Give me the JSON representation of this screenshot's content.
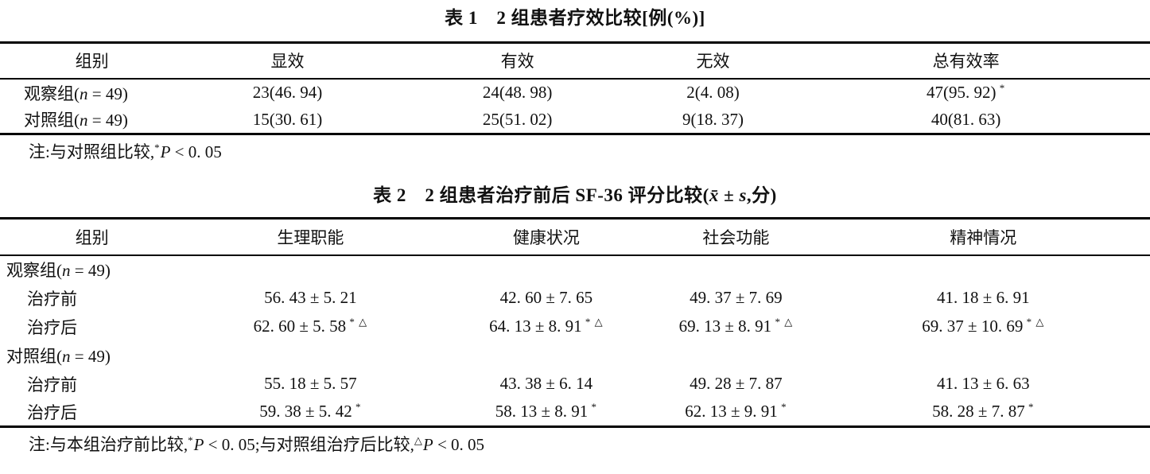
{
  "page": {
    "background": "#ffffff",
    "ink": "#111111",
    "rule_color": "#000000"
  },
  "table1": {
    "title": [
      {
        "t": "表 1　2 组患者疗效比较[例(%)]"
      }
    ],
    "headers": [
      "组别",
      "显效",
      "有效",
      "无效",
      "总有效率"
    ],
    "rows": [
      {
        "cells": [
          [
            {
              "t": "观察组("
            },
            {
              "t": "n",
              "i": true
            },
            {
              "t": " = 49)"
            }
          ],
          [
            {
              "t": "23(46. 94)"
            }
          ],
          [
            {
              "t": "24(48. 98)"
            }
          ],
          [
            {
              "t": "2(4. 08)"
            }
          ],
          [
            {
              "t": "47(95. 92)"
            },
            {
              "t": " *",
              "s": true
            }
          ]
        ]
      },
      {
        "cells": [
          [
            {
              "t": "对照组("
            },
            {
              "t": "n",
              "i": true
            },
            {
              "t": " = 49)"
            }
          ],
          [
            {
              "t": "15(30. 61)"
            }
          ],
          [
            {
              "t": "25(51. 02)"
            }
          ],
          [
            {
              "t": "9(18. 37)"
            }
          ],
          [
            {
              "t": "40(81. 63)"
            }
          ]
        ]
      }
    ],
    "note": [
      {
        "t": "注:与对照组比较,"
      },
      {
        "t": "*",
        "s": true
      },
      {
        "t": "P",
        "i": true
      },
      {
        "t": " < 0. 05"
      }
    ]
  },
  "table2": {
    "title": [
      {
        "t": "表 2　2 组患者治疗前后 SF-36 评分比较("
      },
      {
        "t": "x̄ ± s",
        "i": true
      },
      {
        "t": ",分)"
      }
    ],
    "headers": [
      "组别",
      "生理职能",
      "健康状况",
      "社会功能",
      "精神情况"
    ],
    "rows": [
      {
        "group": true,
        "cells": [
          [
            {
              "t": "观察组("
            },
            {
              "t": "n",
              "i": true
            },
            {
              "t": " = 49)"
            }
          ]
        ]
      },
      {
        "cells": [
          [
            {
              "t": "治疗前"
            }
          ],
          [
            {
              "t": "56. 43 ± 5. 21"
            }
          ],
          [
            {
              "t": "42. 60 ± 7. 65"
            }
          ],
          [
            {
              "t": "49. 37 ± 7. 69"
            }
          ],
          [
            {
              "t": "41. 18 ± 6. 91"
            }
          ]
        ]
      },
      {
        "cells": [
          [
            {
              "t": "治疗后"
            }
          ],
          [
            {
              "t": "62. 60 ± 5. 58"
            },
            {
              "t": " * △",
              "s": true
            }
          ],
          [
            {
              "t": "64. 13 ± 8. 91"
            },
            {
              "t": " * △",
              "s": true
            }
          ],
          [
            {
              "t": "69. 13 ± 8. 91"
            },
            {
              "t": " * △",
              "s": true
            }
          ],
          [
            {
              "t": "69. 37 ± 10. 69"
            },
            {
              "t": " * △",
              "s": true
            }
          ]
        ]
      },
      {
        "group": true,
        "cells": [
          [
            {
              "t": "对照组("
            },
            {
              "t": "n",
              "i": true
            },
            {
              "t": " = 49)"
            }
          ]
        ]
      },
      {
        "cells": [
          [
            {
              "t": "治疗前"
            }
          ],
          [
            {
              "t": "55. 18 ± 5. 57"
            }
          ],
          [
            {
              "t": "43. 38 ± 6. 14"
            }
          ],
          [
            {
              "t": "49. 28 ± 7. 87"
            }
          ],
          [
            {
              "t": "41. 13 ± 6. 63"
            }
          ]
        ]
      },
      {
        "cells": [
          [
            {
              "t": "治疗后"
            }
          ],
          [
            {
              "t": "59. 38 ± 5. 42"
            },
            {
              "t": " *",
              "s": true
            }
          ],
          [
            {
              "t": "58. 13 ± 8. 91"
            },
            {
              "t": " *",
              "s": true
            }
          ],
          [
            {
              "t": "62. 13 ± 9. 91"
            },
            {
              "t": " *",
              "s": true
            }
          ],
          [
            {
              "t": "58. 28 ± 7. 87"
            },
            {
              "t": " *",
              "s": true
            }
          ]
        ]
      }
    ],
    "note": [
      {
        "t": "注:与本组治疗前比较,"
      },
      {
        "t": "*",
        "s": true
      },
      {
        "t": "P",
        "i": true
      },
      {
        "t": " < 0. 05;与对照组治疗后比较,"
      },
      {
        "t": "△",
        "s": true
      },
      {
        "t": "P",
        "i": true
      },
      {
        "t": " < 0. 05"
      }
    ]
  }
}
